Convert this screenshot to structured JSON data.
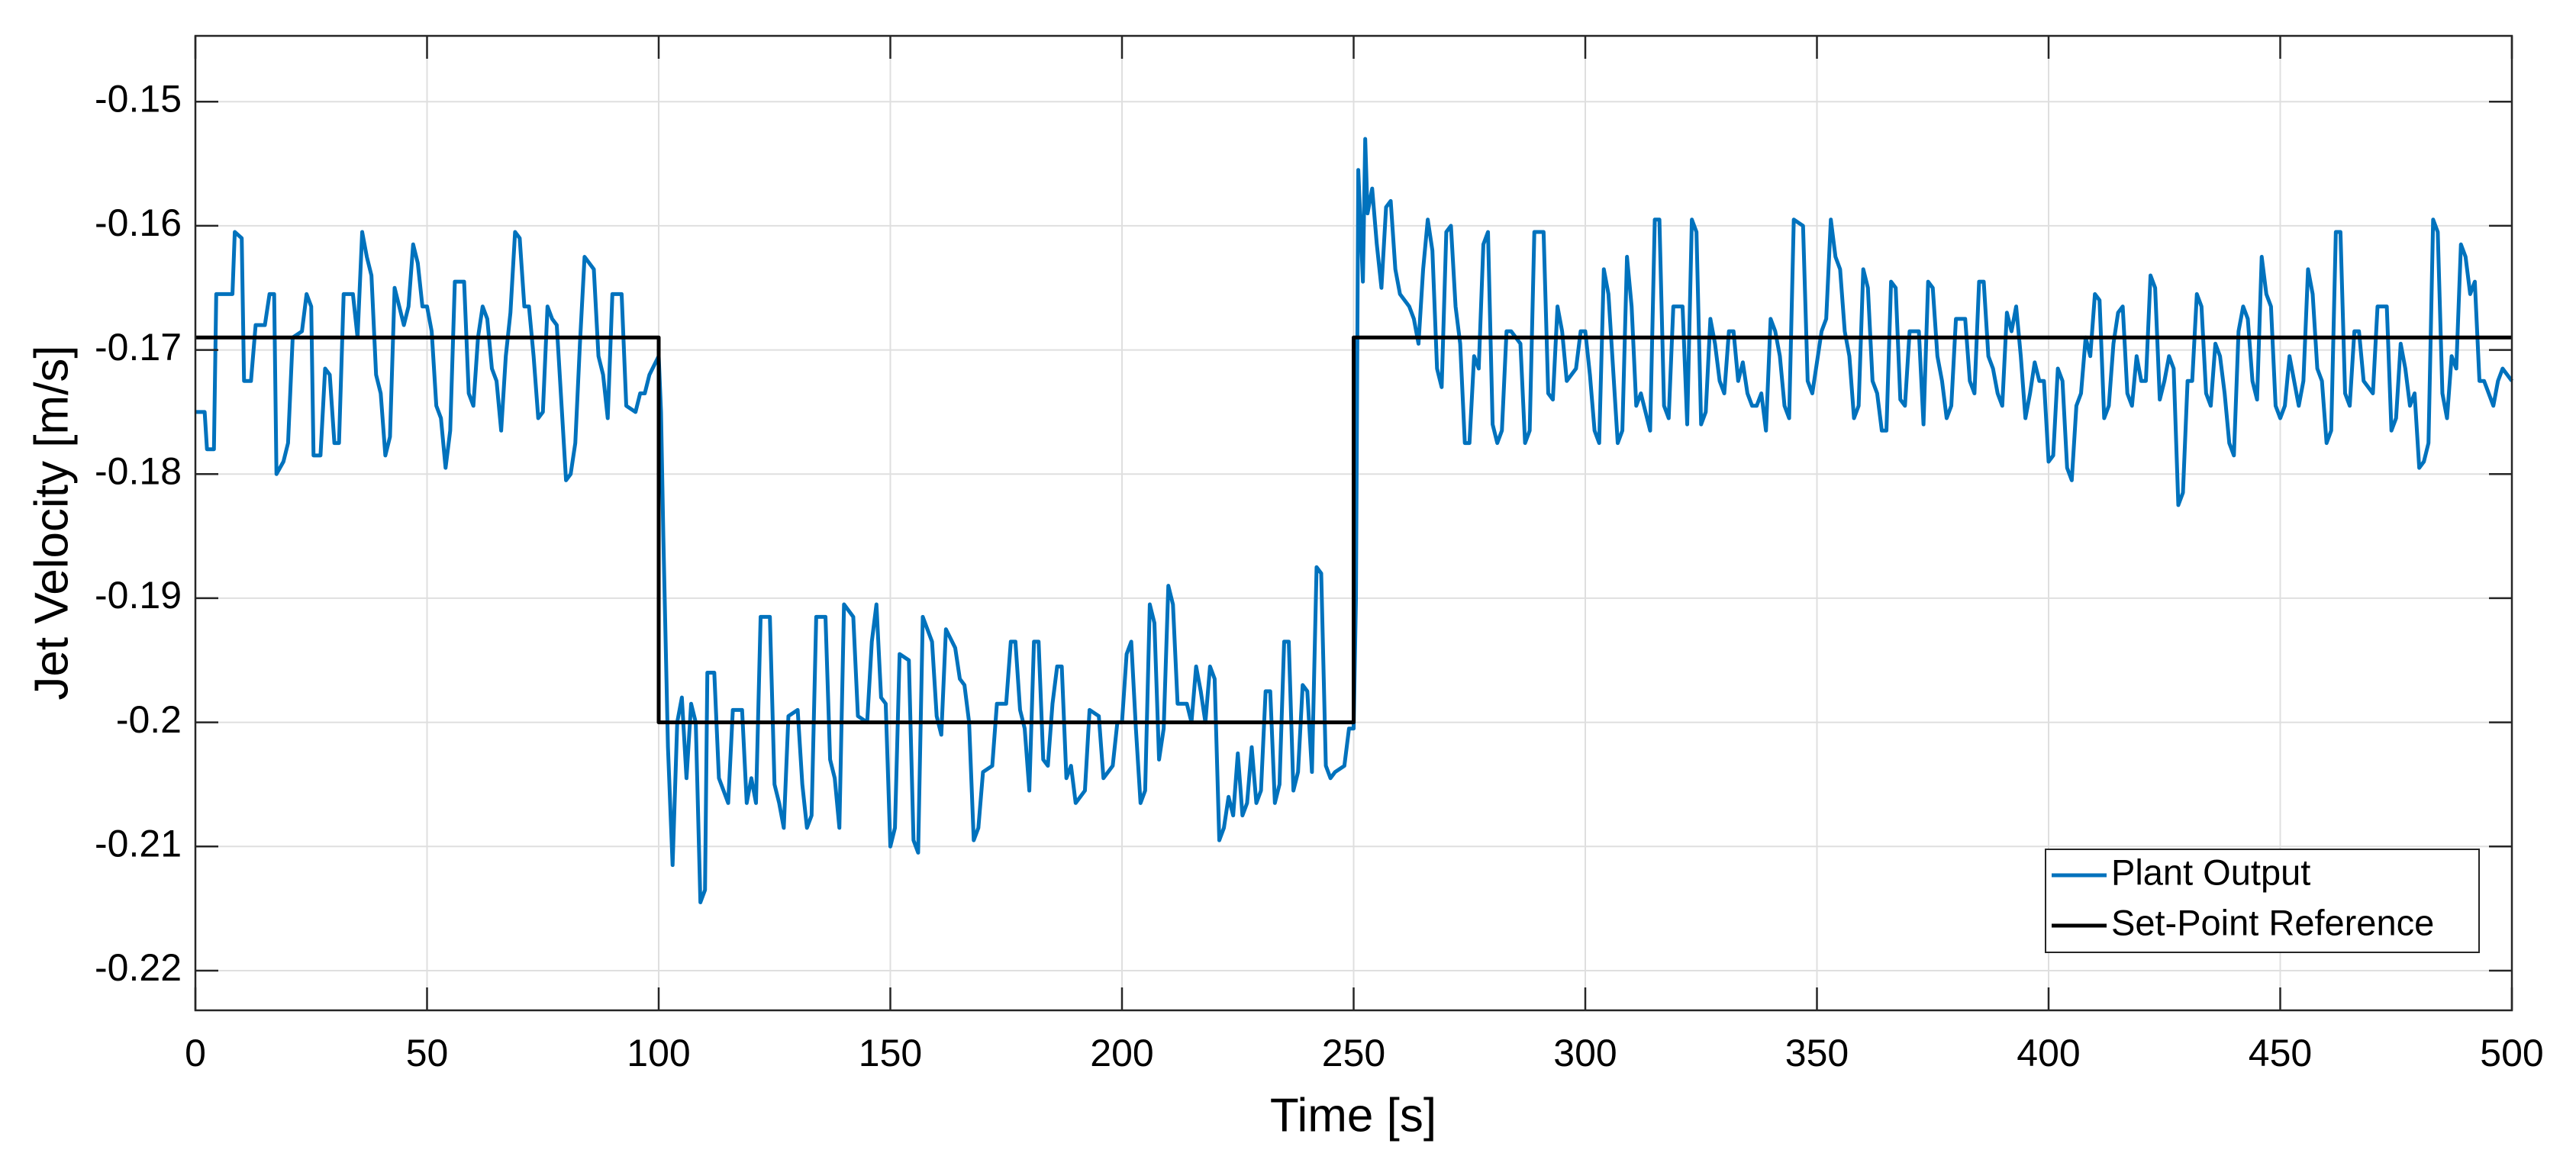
{
  "chart_data": {
    "type": "line",
    "xlabel": "Time [s]",
    "ylabel": "Jet Velocity [m/s]",
    "xlim": [
      0,
      500
    ],
    "xticks": [
      0,
      50,
      100,
      150,
      200,
      250,
      300,
      350,
      400,
      450,
      500
    ],
    "ylim": [
      -0.2232,
      -0.1447
    ],
    "yticks": [
      -0.22,
      -0.21,
      -0.2,
      -0.19,
      -0.18,
      -0.17,
      -0.16,
      -0.15
    ],
    "grid": true,
    "legend": "southeast",
    "series": [
      {
        "name": "Plant Output",
        "color": "#0072bd",
        "x": [
          0,
          2,
          2.5,
          4,
          4.5,
          8,
          8.5,
          10,
          10.5,
          12,
          13,
          15,
          16,
          17,
          17.5,
          19,
          20,
          21,
          23,
          24,
          25,
          25.5,
          27,
          28,
          29,
          30,
          31,
          32,
          34,
          35,
          36,
          37,
          38,
          39,
          40,
          41,
          42,
          43,
          45,
          46,
          47,
          48,
          49,
          50,
          51,
          52,
          53,
          54,
          55,
          56,
          58,
          59,
          60,
          61,
          62,
          63,
          64,
          65,
          66,
          67,
          68,
          69,
          70,
          71,
          72,
          73,
          74,
          75,
          76,
          77,
          78,
          80,
          81,
          82,
          83,
          84,
          86,
          87,
          88,
          89,
          90,
          92,
          93,
          95,
          96,
          97,
          98,
          100,
          100.5,
          101,
          102,
          103,
          104,
          105,
          106,
          107,
          108,
          109,
          110,
          110.5,
          112,
          113,
          115,
          116,
          118,
          119,
          120,
          121,
          122,
          124,
          125,
          126,
          127,
          128,
          130,
          131,
          132,
          133,
          134,
          136,
          137,
          138,
          139,
          140,
          142,
          143,
          145,
          146,
          147,
          148,
          149,
          150,
          151,
          152,
          154,
          155,
          156,
          157,
          159,
          160,
          161,
          162,
          164,
          165,
          166,
          167,
          168,
          169,
          170,
          172,
          173,
          175,
          176,
          177,
          178,
          179,
          180,
          181,
          182,
          183,
          184,
          185,
          186,
          187,
          188,
          189,
          190,
          192,
          193,
          195,
          196,
          198,
          199,
          200,
          201,
          202,
          203,
          204,
          205,
          206,
          207,
          208,
          209,
          210,
          211,
          212,
          214,
          215,
          216,
          217,
          218,
          219,
          220,
          221,
          222,
          223,
          224,
          225,
          226,
          227,
          228,
          229,
          230,
          231,
          232,
          233,
          234,
          235,
          236,
          237,
          238,
          239,
          240,
          241,
          242,
          243,
          244,
          245,
          246,
          248,
          249,
          250,
          250.5,
          251,
          252,
          252.5,
          253,
          254,
          255,
          256,
          257,
          258,
          259,
          260,
          262,
          263,
          264,
          265,
          266,
          267,
          268,
          269,
          270,
          271,
          272,
          273,
          274,
          275,
          276,
          277,
          278,
          279,
          280,
          281,
          282,
          283,
          284,
          285,
          286,
          287,
          288,
          289,
          291,
          292,
          293,
          294,
          295,
          296,
          298,
          299,
          300,
          301,
          302,
          303,
          304,
          305,
          306,
          307,
          308,
          309,
          310,
          311,
          312,
          313,
          314,
          315,
          316,
          317,
          318,
          319,
          321,
          322,
          323,
          324,
          325,
          326,
          327,
          328,
          329,
          330,
          331,
          332,
          333,
          334,
          335,
          336,
          337,
          338,
          339,
          340,
          341,
          342,
          343,
          344,
          345,
          347,
          348,
          349,
          350,
          351,
          352,
          353,
          354,
          355,
          356,
          357,
          358,
          359,
          360,
          361,
          362,
          363,
          364,
          365,
          366,
          367,
          368,
          369,
          370,
          372,
          373,
          374,
          375,
          376,
          377,
          378,
          379,
          380,
          382,
          383,
          384,
          385,
          386,
          387,
          388,
          389,
          390,
          391,
          392,
          393,
          394,
          395,
          396,
          397,
          398,
          399,
          400,
          401,
          402,
          403,
          404,
          405,
          406,
          407,
          408,
          409,
          410,
          411,
          412,
          413,
          414,
          415,
          416,
          417,
          418,
          419,
          420,
          421,
          422,
          423,
          424,
          425,
          426,
          427,
          428,
          429,
          430,
          431,
          432,
          433,
          434,
          435,
          436,
          437,
          438,
          439,
          440,
          441,
          442,
          443,
          444,
          445,
          446,
          447,
          448,
          449,
          450,
          451,
          452,
          453,
          454,
          455,
          456,
          457,
          458,
          459,
          460,
          461,
          462,
          463,
          464,
          465,
          466,
          467,
          468,
          470,
          471,
          473,
          474,
          475,
          476,
          477,
          478,
          479,
          480,
          481,
          482,
          483,
          484,
          485,
          486,
          487,
          488,
          489,
          490,
          491,
          492,
          493,
          494,
          495,
          496,
          497,
          498,
          500
        ],
        "values": [
          -0.175,
          -0.175,
          -0.178,
          -0.178,
          -0.1655,
          -0.1655,
          -0.1605,
          -0.161,
          -0.1725,
          -0.1725,
          -0.168,
          -0.168,
          -0.1655,
          -0.1655,
          -0.18,
          -0.179,
          -0.1775,
          -0.169,
          -0.1685,
          -0.1655,
          -0.1665,
          -0.1785,
          -0.1785,
          -0.1715,
          -0.172,
          -0.1775,
          -0.1775,
          -0.1655,
          -0.1655,
          -0.169,
          -0.1605,
          -0.1625,
          -0.164,
          -0.172,
          -0.1735,
          -0.1785,
          -0.177,
          -0.165,
          -0.168,
          -0.1665,
          -0.1615,
          -0.163,
          -0.1665,
          -0.1665,
          -0.1685,
          -0.1745,
          -0.1755,
          -0.1795,
          -0.1765,
          -0.1645,
          -0.1645,
          -0.1735,
          -0.1745,
          -0.169,
          -0.1665,
          -0.1675,
          -0.1715,
          -0.1725,
          -0.1765,
          -0.1705,
          -0.167,
          -0.1605,
          -0.161,
          -0.1665,
          -0.1665,
          -0.1705,
          -0.1755,
          -0.175,
          -0.1665,
          -0.1675,
          -0.168,
          -0.1805,
          -0.18,
          -0.1775,
          -0.1695,
          -0.1625,
          -0.1635,
          -0.1705,
          -0.172,
          -0.1755,
          -0.1655,
          -0.1655,
          -0.1745,
          -0.175,
          -0.1735,
          -0.1735,
          -0.172,
          -0.1705,
          -0.175,
          -0.185,
          -0.202,
          -0.2115,
          -0.2,
          -0.198,
          -0.2045,
          -0.1985,
          -0.2,
          -0.2145,
          -0.2135,
          -0.196,
          -0.196,
          -0.2045,
          -0.2065,
          -0.199,
          -0.199,
          -0.2065,
          -0.2045,
          -0.2065,
          -0.1915,
          -0.1915,
          -0.205,
          -0.2065,
          -0.2085,
          -0.1995,
          -0.199,
          -0.205,
          -0.2085,
          -0.2075,
          -0.1915,
          -0.1915,
          -0.203,
          -0.2045,
          -0.2085,
          -0.1905,
          -0.1915,
          -0.1995,
          -0.2,
          -0.1935,
          -0.1905,
          -0.198,
          -0.1985,
          -0.21,
          -0.2085,
          -0.1945,
          -0.195,
          -0.2095,
          -0.2105,
          -0.1915,
          -0.1935,
          -0.1995,
          -0.201,
          -0.1925,
          -0.194,
          -0.1965,
          -0.197,
          -0.2,
          -0.2095,
          -0.2085,
          -0.204,
          -0.2035,
          -0.1985,
          -0.1985,
          -0.1935,
          -0.1935,
          -0.199,
          -0.2005,
          -0.2055,
          -0.1935,
          -0.1935,
          -0.203,
          -0.2035,
          -0.1985,
          -0.1955,
          -0.1955,
          -0.2045,
          -0.2035,
          -0.2065,
          -0.2055,
          -0.199,
          -0.1995,
          -0.2045,
          -0.2035,
          -0.2,
          -0.2,
          -0.1945,
          -0.1935,
          -0.2005,
          -0.2065,
          -0.2055,
          -0.1905,
          -0.192,
          -0.203,
          -0.2005,
          -0.189,
          -0.1905,
          -0.1985,
          -0.1985,
          -0.2,
          -0.1955,
          -0.1975,
          -0.2,
          -0.1955,
          -0.1965,
          -0.2095,
          -0.2085,
          -0.206,
          -0.2075,
          -0.2025,
          -0.2075,
          -0.2065,
          -0.202,
          -0.2065,
          -0.2055,
          -0.1975,
          -0.1975,
          -0.2065,
          -0.205,
          -0.1935,
          -0.1935,
          -0.2055,
          -0.204,
          -0.197,
          -0.1975,
          -0.204,
          -0.1875,
          -0.188,
          -0.2035,
          -0.2045,
          -0.204,
          -0.2035,
          -0.2005,
          -0.2005,
          -0.19,
          -0.1555,
          -0.1645,
          -0.153,
          -0.159,
          -0.157,
          -0.1615,
          -0.165,
          -0.1585,
          -0.158,
          -0.1635,
          -0.1655,
          -0.1665,
          -0.1675,
          -0.1695,
          -0.1635,
          -0.1595,
          -0.162,
          -0.1715,
          -0.173,
          -0.1605,
          -0.16,
          -0.1665,
          -0.1695,
          -0.1775,
          -0.1775,
          -0.1705,
          -0.1715,
          -0.1615,
          -0.1605,
          -0.176,
          -0.1775,
          -0.1765,
          -0.1685,
          -0.1685,
          -0.169,
          -0.1695,
          -0.1775,
          -0.1765,
          -0.1605,
          -0.1605,
          -0.1735,
          -0.174,
          -0.1665,
          -0.1685,
          -0.1725,
          -0.1715,
          -0.1685,
          -0.1685,
          -0.172,
          -0.1765,
          -0.1775,
          -0.1635,
          -0.1655,
          -0.1715,
          -0.1775,
          -0.1765,
          -0.1625,
          -0.1665,
          -0.1745,
          -0.1735,
          -0.175,
          -0.1765,
          -0.1595,
          -0.1595,
          -0.1745,
          -0.1755,
          -0.1665,
          -0.1665,
          -0.176,
          -0.1595,
          -0.1605,
          -0.176,
          -0.175,
          -0.1675,
          -0.1695,
          -0.1725,
          -0.1735,
          -0.1685,
          -0.1685,
          -0.1725,
          -0.171,
          -0.1735,
          -0.1745,
          -0.1745,
          -0.1735,
          -0.1765,
          -0.1675,
          -0.1685,
          -0.1705,
          -0.1745,
          -0.1755,
          -0.1595,
          -0.16,
          -0.1725,
          -0.1735,
          -0.171,
          -0.1685,
          -0.1675,
          -0.1595,
          -0.1625,
          -0.1635,
          -0.1685,
          -0.1705,
          -0.1755,
          -0.1745,
          -0.1635,
          -0.165,
          -0.1725,
          -0.1735,
          -0.1765,
          -0.1765,
          -0.1645,
          -0.165,
          -0.174,
          -0.1745,
          -0.1685,
          -0.1685,
          -0.176,
          -0.1645,
          -0.165,
          -0.1705,
          -0.1725,
          -0.1755,
          -0.1745,
          -0.1675,
          -0.1675,
          -0.1725,
          -0.1735,
          -0.1645,
          -0.1645,
          -0.1705,
          -0.1715,
          -0.1735,
          -0.1745,
          -0.167,
          -0.1685,
          -0.1665,
          -0.1705,
          -0.1755,
          -0.1735,
          -0.171,
          -0.1725,
          -0.1725,
          -0.179,
          -0.1785,
          -0.1715,
          -0.1725,
          -0.1795,
          -0.1805,
          -0.1745,
          -0.1735,
          -0.169,
          -0.1705,
          -0.1655,
          -0.166,
          -0.1755,
          -0.1745,
          -0.1695,
          -0.167,
          -0.1665,
          -0.1735,
          -0.1745,
          -0.1705,
          -0.1725,
          -0.1725,
          -0.164,
          -0.165,
          -0.174,
          -0.1725,
          -0.1705,
          -0.1715,
          -0.1825,
          -0.1815,
          -0.1725,
          -0.1725,
          -0.1655,
          -0.1665,
          -0.1735,
          -0.1745,
          -0.1695,
          -0.1705,
          -0.1735,
          -0.1775,
          -0.1785,
          -0.1685,
          -0.1665,
          -0.1675,
          -0.1725,
          -0.174,
          -0.1625,
          -0.1655,
          -0.1665,
          -0.1745,
          -0.1755,
          -0.1745,
          -0.1705,
          -0.1725,
          -0.1745,
          -0.1725,
          -0.1635,
          -0.1655,
          -0.1715,
          -0.1725,
          -0.1775,
          -0.1765,
          -0.1605,
          -0.1605,
          -0.1735,
          -0.1745,
          -0.1685,
          -0.1685,
          -0.1725,
          -0.1735,
          -0.1665,
          -0.1665,
          -0.1765,
          -0.1755,
          -0.1695,
          -0.1715,
          -0.1745,
          -0.1735,
          -0.1795,
          -0.179,
          -0.1775,
          -0.1595,
          -0.1605,
          -0.1735,
          -0.1755,
          -0.1705,
          -0.1715,
          -0.1615,
          -0.1625,
          -0.1655,
          -0.1645,
          -0.1725,
          -0.1725,
          -0.1735,
          -0.1745,
          -0.1725,
          -0.1715,
          -0.1725
        ]
      },
      {
        "name": "Set-Point Reference",
        "color": "#000000",
        "x": [
          0,
          100,
          100,
          250,
          250,
          500
        ],
        "values": [
          -0.169,
          -0.169,
          -0.2,
          -0.2,
          -0.169,
          -0.169
        ]
      }
    ]
  }
}
